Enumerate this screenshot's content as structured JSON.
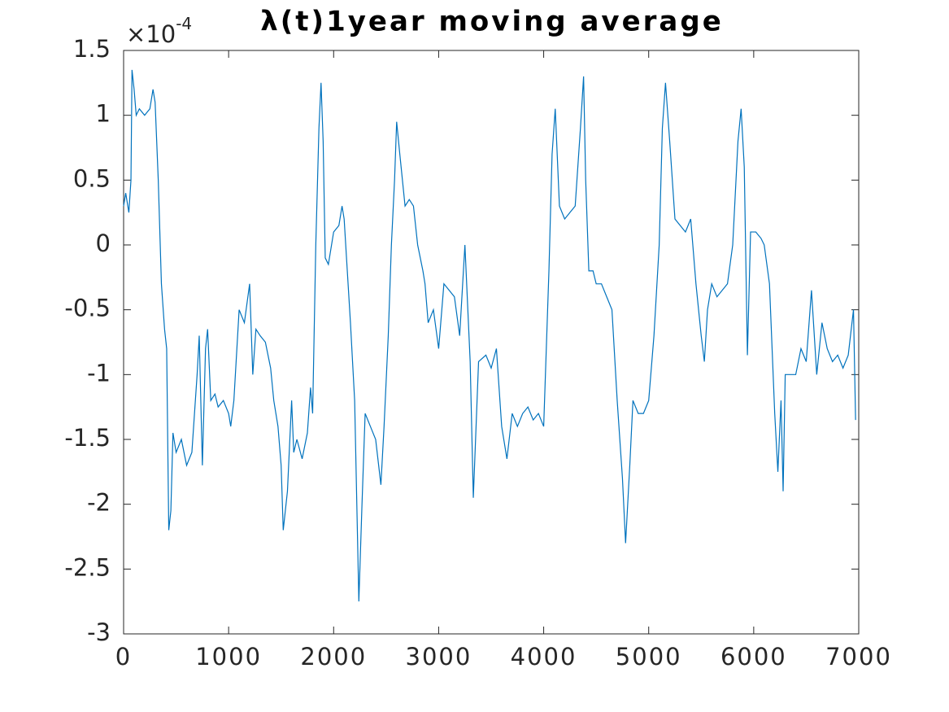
{
  "chart_data": {
    "type": "line",
    "title": "λ(t)1year moving average",
    "y_multiplier": {
      "base": "×10",
      "exponent": "-4"
    },
    "x": [
      0,
      20,
      50,
      70,
      80,
      100,
      120,
      150,
      200,
      250,
      280,
      300,
      330,
      360,
      390,
      410,
      430,
      450,
      470,
      500,
      550,
      600,
      650,
      700,
      720,
      750,
      780,
      800,
      830,
      870,
      900,
      950,
      1000,
      1020,
      1050,
      1100,
      1150,
      1200,
      1230,
      1260,
      1300,
      1350,
      1400,
      1430,
      1470,
      1500,
      1520,
      1560,
      1600,
      1620,
      1650,
      1700,
      1750,
      1780,
      1800,
      1830,
      1860,
      1880,
      1900,
      1920,
      1950,
      2000,
      2050,
      2080,
      2100,
      2130,
      2160,
      2200,
      2240,
      2270,
      2300,
      2350,
      2400,
      2450,
      2480,
      2520,
      2550,
      2580,
      2600,
      2630,
      2680,
      2720,
      2760,
      2800,
      2850,
      2870,
      2900,
      2950,
      3000,
      3050,
      3100,
      3150,
      3200,
      3250,
      3300,
      3330,
      3380,
      3450,
      3500,
      3550,
      3600,
      3650,
      3700,
      3750,
      3800,
      3850,
      3900,
      3950,
      4000,
      4050,
      4080,
      4110,
      4150,
      4200,
      4250,
      4300,
      4350,
      4380,
      4400,
      4430,
      4470,
      4500,
      4550,
      4600,
      4650,
      4700,
      4750,
      4780,
      4820,
      4850,
      4900,
      4950,
      5000,
      5050,
      5100,
      5130,
      5160,
      5200,
      5250,
      5300,
      5350,
      5400,
      5450,
      5500,
      5530,
      5560,
      5600,
      5650,
      5700,
      5750,
      5800,
      5850,
      5880,
      5910,
      5940,
      5970,
      6020,
      6070,
      6100,
      6150,
      6200,
      6230,
      6260,
      6280,
      6300,
      6350,
      6400,
      6450,
      6500,
      6550,
      6600,
      6650,
      6700,
      6750,
      6800,
      6850,
      6900,
      6950,
      6970
    ],
    "series": [
      {
        "color": "#0072bd",
        "values": [
          0.3,
          0.4,
          0.25,
          0.5,
          1.35,
          1.2,
          1.0,
          1.05,
          1.0,
          1.05,
          1.2,
          1.1,
          0.5,
          -0.3,
          -0.65,
          -0.8,
          -2.2,
          -2.05,
          -1.45,
          -1.6,
          -1.5,
          -1.7,
          -1.6,
          -1.0,
          -0.7,
          -1.7,
          -0.8,
          -0.65,
          -1.2,
          -1.15,
          -1.25,
          -1.2,
          -1.3,
          -1.4,
          -1.2,
          -0.5,
          -0.6,
          -0.3,
          -1.0,
          -0.65,
          -0.7,
          -0.75,
          -0.95,
          -1.2,
          -1.4,
          -1.7,
          -2.2,
          -1.9,
          -1.2,
          -1.6,
          -1.5,
          -1.65,
          -1.45,
          -1.1,
          -1.3,
          0.0,
          0.9,
          1.25,
          0.8,
          -0.1,
          -0.15,
          0.1,
          0.15,
          0.3,
          0.2,
          -0.2,
          -0.6,
          -1.2,
          -2.75,
          -2.0,
          -1.3,
          -1.4,
          -1.5,
          -1.85,
          -1.4,
          -0.7,
          0.0,
          0.5,
          0.95,
          0.7,
          0.3,
          0.35,
          0.3,
          0.0,
          -0.2,
          -0.3,
          -0.6,
          -0.5,
          -0.8,
          -0.3,
          -0.35,
          -0.4,
          -0.7,
          0.0,
          -0.9,
          -1.95,
          -0.9,
          -0.85,
          -0.95,
          -0.8,
          -1.4,
          -1.65,
          -1.3,
          -1.4,
          -1.3,
          -1.25,
          -1.35,
          -1.3,
          -1.4,
          -0.2,
          0.7,
          1.05,
          0.3,
          0.2,
          0.25,
          0.3,
          0.9,
          1.3,
          0.5,
          -0.2,
          -0.2,
          -0.3,
          -0.3,
          -0.4,
          -0.5,
          -1.2,
          -1.8,
          -2.3,
          -1.7,
          -1.2,
          -1.3,
          -1.3,
          -1.2,
          -0.7,
          0.0,
          0.9,
          1.25,
          0.8,
          0.2,
          0.15,
          0.1,
          0.2,
          -0.3,
          -0.7,
          -0.9,
          -0.5,
          -0.3,
          -0.4,
          -0.35,
          -0.3,
          0.0,
          0.8,
          1.05,
          0.6,
          -0.85,
          0.1,
          0.1,
          0.05,
          0.0,
          -0.3,
          -1.3,
          -1.75,
          -1.2,
          -1.9,
          -1.0,
          -1.0,
          -1.0,
          -0.8,
          -0.9,
          -0.35,
          -1.0,
          -0.6,
          -0.8,
          -0.9,
          -0.85,
          -0.95,
          -0.85,
          -0.5,
          -1.35
        ]
      }
    ],
    "xlim": [
      0,
      7000
    ],
    "xticks": [
      0,
      1000,
      2000,
      3000,
      4000,
      5000,
      6000,
      7000
    ],
    "ylim": [
      -3,
      1.5
    ],
    "yticks": [
      -3,
      -2.5,
      -2,
      -1.5,
      -1,
      -0.5,
      0,
      0.5,
      1,
      1.5
    ],
    "grid": false
  }
}
